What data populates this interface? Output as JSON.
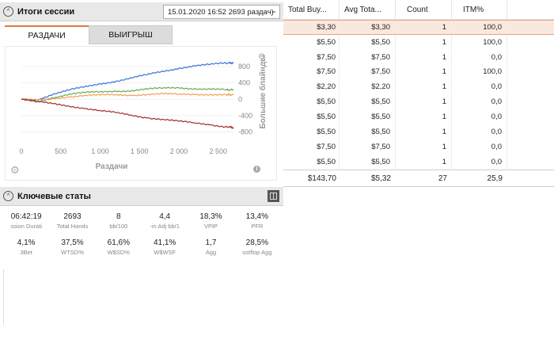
{
  "session_panel": {
    "title": "Итоги сессии",
    "session_selector": "15.01.2020 16:52 2693 раздач)",
    "tabs": [
      {
        "label": "РАЗДАЧИ",
        "active": true
      },
      {
        "label": "ВЫИГРЫШ",
        "active": false
      }
    ],
    "icons": [
      "zoom-icon",
      "settings-gear-icon",
      "info-icon"
    ]
  },
  "chart_data": {
    "type": "line",
    "xlabel": "Раздачи",
    "ylabel": "Большие блайнды",
    "x_ticks": [
      "0",
      "500",
      "1 000",
      "1 500",
      "2 000",
      "2 500"
    ],
    "y_ticks": [
      "800",
      "400",
      "0",
      "-400",
      "-800"
    ],
    "xlim": [
      0,
      2693
    ],
    "ylim": [
      -1000,
      1050
    ],
    "y_axis_side": "right",
    "series": [
      {
        "color": "#3a6fe0",
        "points": [
          [
            0,
            0
          ],
          [
            200,
            -10
          ],
          [
            400,
            120
          ],
          [
            600,
            220
          ],
          [
            800,
            300
          ],
          [
            1000,
            380
          ],
          [
            1200,
            440
          ],
          [
            1400,
            520
          ],
          [
            1600,
            600
          ],
          [
            1800,
            680
          ],
          [
            2000,
            760
          ],
          [
            2200,
            820
          ],
          [
            2400,
            850
          ],
          [
            2600,
            880
          ],
          [
            2693,
            890
          ]
        ]
      },
      {
        "color": "#6aa84f",
        "points": [
          [
            0,
            0
          ],
          [
            200,
            -60
          ],
          [
            400,
            40
          ],
          [
            600,
            120
          ],
          [
            800,
            160
          ],
          [
            1000,
            180
          ],
          [
            1200,
            200
          ],
          [
            1400,
            210
          ],
          [
            1600,
            250
          ],
          [
            1800,
            270
          ],
          [
            2000,
            280
          ],
          [
            2200,
            260
          ],
          [
            2400,
            250
          ],
          [
            2600,
            230
          ],
          [
            2693,
            230
          ]
        ]
      },
      {
        "color": "#f0a050",
        "points": [
          [
            0,
            0
          ],
          [
            200,
            -20
          ],
          [
            400,
            20
          ],
          [
            600,
            60
          ],
          [
            800,
            90
          ],
          [
            1000,
            100
          ],
          [
            1200,
            110
          ],
          [
            1400,
            100
          ],
          [
            1600,
            120
          ],
          [
            1800,
            130
          ],
          [
            2000,
            120
          ],
          [
            2200,
            120
          ],
          [
            2400,
            120
          ],
          [
            2600,
            110
          ],
          [
            2693,
            110
          ]
        ]
      },
      {
        "color": "#a52a2a",
        "points": [
          [
            0,
            0
          ],
          [
            200,
            -60
          ],
          [
            400,
            -110
          ],
          [
            600,
            -160
          ],
          [
            800,
            -220
          ],
          [
            1000,
            -280
          ],
          [
            1200,
            -330
          ],
          [
            1400,
            -390
          ],
          [
            1600,
            -450
          ],
          [
            1800,
            -490
          ],
          [
            2000,
            -540
          ],
          [
            2200,
            -580
          ],
          [
            2400,
            -620
          ],
          [
            2600,
            -670
          ],
          [
            2693,
            -690
          ]
        ]
      }
    ]
  },
  "stats_panel": {
    "title": "Ключевые статы",
    "stats": [
      {
        "value": "06:42:19",
        "label": "ssion Durati"
      },
      {
        "value": "2693",
        "label": "Total Hands"
      },
      {
        "value": "8",
        "label": "bb/100"
      },
      {
        "value": "4,4",
        "label": "-in Adj bb/1"
      },
      {
        "value": "18,3%",
        "label": "VPIP"
      },
      {
        "value": "13,4%",
        "label": "PFR"
      },
      {
        "value": "4,1%",
        "label": "3Bet"
      },
      {
        "value": "37,5%",
        "label": "WTSD%"
      },
      {
        "value": "61,6%",
        "label": "W$SD%"
      },
      {
        "value": "41,1%",
        "label": "W$WSF"
      },
      {
        "value": "1,7",
        "label": "Agg"
      },
      {
        "value": "28,5%",
        "label": "ostflop Agg"
      }
    ]
  },
  "table": {
    "headers": [
      "Total Buy...",
      "Avg Tota...",
      "Count",
      "ITM%"
    ],
    "rows": [
      [
        "$3,30",
        "$3,30",
        "1",
        "100,0"
      ],
      [
        "$5,50",
        "$5,50",
        "1",
        "100,0"
      ],
      [
        "$7,50",
        "$7,50",
        "1",
        "0,0"
      ],
      [
        "$7,50",
        "$7,50",
        "1",
        "100,0"
      ],
      [
        "$2,20",
        "$2,20",
        "1",
        "0,0"
      ],
      [
        "$5,50",
        "$5,50",
        "1",
        "0,0"
      ],
      [
        "$5,50",
        "$5,50",
        "1",
        "0,0"
      ],
      [
        "$5,50",
        "$5,50",
        "1",
        "0,0"
      ],
      [
        "$7,50",
        "$7,50",
        "1",
        "0,0"
      ],
      [
        "$5,50",
        "$5,50",
        "1",
        "0,0"
      ]
    ],
    "selected_row": 0,
    "totals": [
      "$143,70",
      "$5,32",
      "27",
      "25,9"
    ],
    "colors": {
      "selected_bg": "#fae8df",
      "selected_border": "#e6a486"
    }
  }
}
